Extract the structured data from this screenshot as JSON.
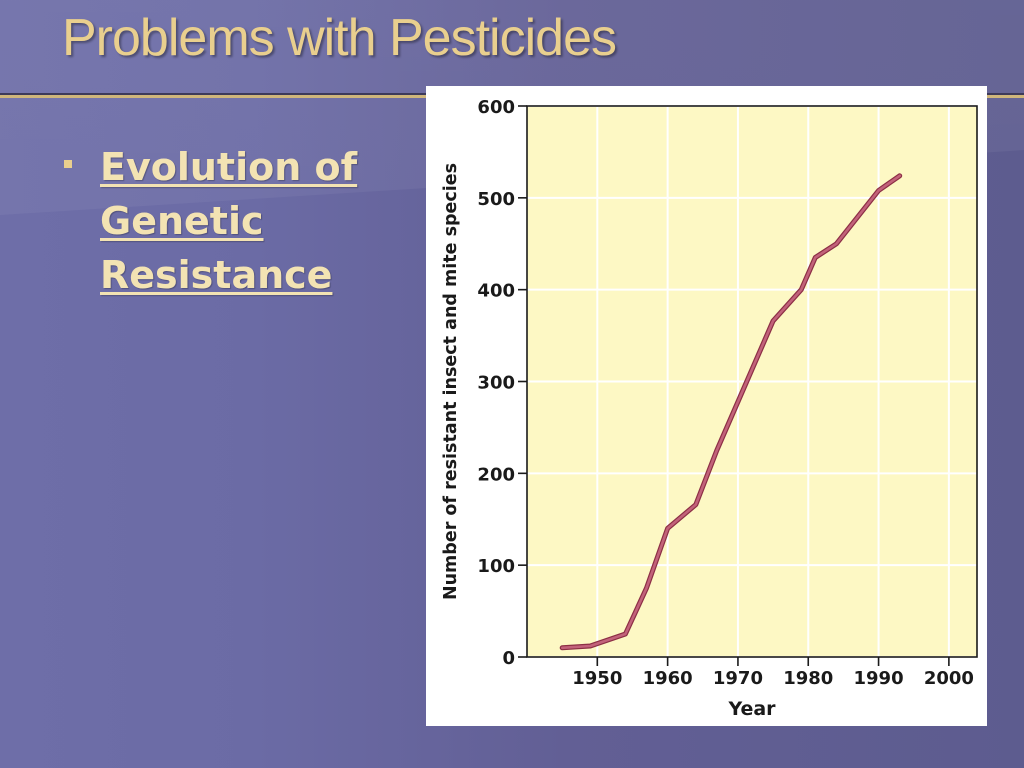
{
  "slide": {
    "title": "Problems with Pesticides",
    "bullet_lines": [
      "Evolution of",
      "Genetic",
      "Resistance"
    ]
  },
  "colors": {
    "background": "#5f5e90",
    "title": "#e9cf8e",
    "bullet": "#f3e3b3",
    "plot_background": "#fdf8c4",
    "line": "#c2627a"
  },
  "chart_data": {
    "type": "line",
    "xlabel": "Year",
    "ylabel": "Number of resistant insect and mite species",
    "xlim": [
      1940,
      2004
    ],
    "ylim": [
      0,
      600
    ],
    "xticks": [
      1950,
      1960,
      1970,
      1980,
      1990,
      2000
    ],
    "yticks": [
      0,
      100,
      200,
      300,
      400,
      500,
      600
    ],
    "grid": true,
    "series": [
      {
        "x": [
          1945,
          1949,
          1954,
          1957,
          1960,
          1964,
          1967,
          1975,
          1979,
          1981,
          1984,
          1990,
          1993
        ],
        "y": [
          10,
          12,
          25,
          75,
          140,
          166,
          225,
          366,
          400,
          435,
          450,
          508,
          524
        ]
      }
    ]
  }
}
